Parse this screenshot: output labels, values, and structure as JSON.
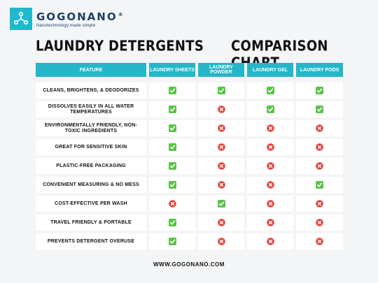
{
  "brand": {
    "name": "GOGONANO",
    "registered_mark": "®",
    "tagline": "Nanotechnology made simple",
    "logo_icon": "molecule-icon",
    "accent_color": "#22b8cc",
    "text_color": "#1d3f66"
  },
  "title": {
    "left": "LAUNDRY DETERGENTS",
    "right": "COMPARISON CHART"
  },
  "table": {
    "headers": [
      "FEATURE",
      "LAUNDRY SHEETS",
      "LAUNDRY POWDER",
      "LAUNDRY GEL",
      "LAUNDRY PODS"
    ],
    "header_color": "#25b6c8",
    "yes_color": "#5cc24a",
    "no_color": "#e0463e",
    "rows": [
      {
        "feature": [
          "CLEANS, BRIGHTENS, & DEODORIZES"
        ],
        "values": [
          "yes",
          "yes",
          "yes",
          "yes"
        ]
      },
      {
        "feature": [
          "DISSOLVES EASILY IN ALL WATER",
          "TEMPERATURES"
        ],
        "values": [
          "yes",
          "no",
          "yes",
          "yes"
        ]
      },
      {
        "feature": [
          "ENVIRONMENTALLY FRIENDLY, NON-",
          "TOXIC INGREDIENTS"
        ],
        "values": [
          "yes",
          "no",
          "no",
          "no"
        ]
      },
      {
        "feature": [
          "GREAT FOR SENSITIVE SKIN"
        ],
        "values": [
          "yes",
          "no",
          "no",
          "no"
        ]
      },
      {
        "feature": [
          "PLASTIC-FREE PACKAGING"
        ],
        "values": [
          "yes",
          "no",
          "no",
          "no"
        ]
      },
      {
        "feature": [
          "CONVENIENT MEASURING & NO MESS"
        ],
        "values": [
          "yes",
          "no",
          "no",
          "yes"
        ]
      },
      {
        "feature": [
          "COST-EFFECTIVE PER WASH"
        ],
        "values": [
          "no",
          "yes",
          "no",
          "no"
        ]
      },
      {
        "feature": [
          "TRAVEL FRIENDLY & PORTABLE"
        ],
        "values": [
          "yes",
          "no",
          "no",
          "no"
        ]
      },
      {
        "feature": [
          "PREVENTS DETERGENT OVERUSE"
        ],
        "values": [
          "yes",
          "no",
          "no",
          "no"
        ]
      }
    ]
  },
  "footer": {
    "url": "WWW.GOGONANO.COM"
  }
}
